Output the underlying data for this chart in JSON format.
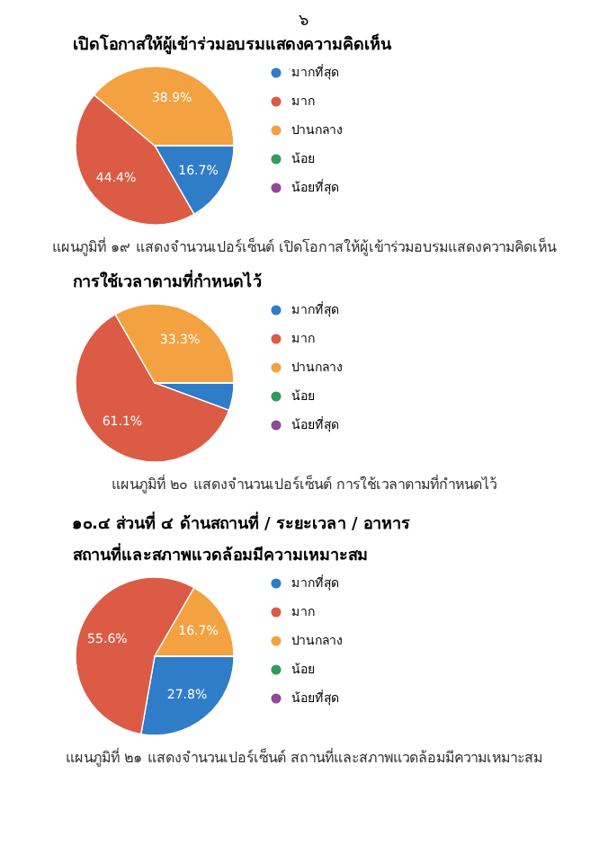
{
  "chart_data": [
    {
      "type": "pie",
      "title": "เปิดโอกาสให้ผู้เข้าร่วมอบรมแสดงความคิดเห็น",
      "categories": [
        "มากที่สุด",
        "มาก",
        "ปานกลาง",
        "น้อย",
        "น้อยที่สุด"
      ],
      "values": [
        16.7,
        44.4,
        38.9,
        0,
        0
      ],
      "colors": [
        "#2f7cc9",
        "#dc5b45",
        "#f4a141",
        "#34995a",
        "#8f4a94"
      ],
      "value_labels": [
        "16.7%",
        "44.4%",
        "38.9%",
        null,
        null
      ],
      "legend": "right",
      "annotations": [
        "๖",
        "แผนภูมิที่ ๑๙ แสดงจำนวนเปอร์เซ็นต์ เปิดโอกาสให้ผู้เข้าร่วมอบรมแสดงความคิดเห็น"
      ]
    },
    {
      "type": "pie",
      "title": "การใช้เวลาตามที่กำหนดไว้",
      "categories": [
        "มากที่สุด",
        "มาก",
        "ปานกลาง",
        "น้อย",
        "น้อยที่สุด"
      ],
      "values": [
        5.6,
        61.1,
        33.3,
        0,
        0
      ],
      "colors": [
        "#2f7cc9",
        "#dc5b45",
        "#f4a141",
        "#34995a",
        "#8f4a94"
      ],
      "value_labels": [
        null,
        "61.1%",
        "33.3%",
        null,
        null
      ],
      "legend": "right",
      "annotations": [
        "แผนภูมิที่ ๒๐ แสดงจำนวนเปอร์เซ็นต์ การใช้เวลาตามที่กำหนดไว้",
        "๑๐.๔ ส่วนที่ ๔ ด้านสถานที่ / ระยะเวลา / อาหาร"
      ]
    },
    {
      "type": "pie",
      "title": "สถานที่และสภาพแวดล้อมมีความเหมาะสม",
      "categories": [
        "มากที่สุด",
        "มาก",
        "ปานกลาง",
        "น้อย",
        "น้อยที่สุด"
      ],
      "values": [
        27.8,
        55.6,
        16.7,
        0,
        0
      ],
      "colors": [
        "#2f7cc9",
        "#dc5b45",
        "#f4a141",
        "#34995a",
        "#8f4a94"
      ],
      "value_labels": [
        "27.8%",
        "55.6%",
        "16.7%",
        null,
        null
      ],
      "legend": "right",
      "annotations": [
        "แผนภูมิที่ ๒๑ แสดงจำนวนเปอร์เซ็นต์ สถานที่และสภาพแวดล้อมมีความเหมาะสม"
      ]
    }
  ]
}
